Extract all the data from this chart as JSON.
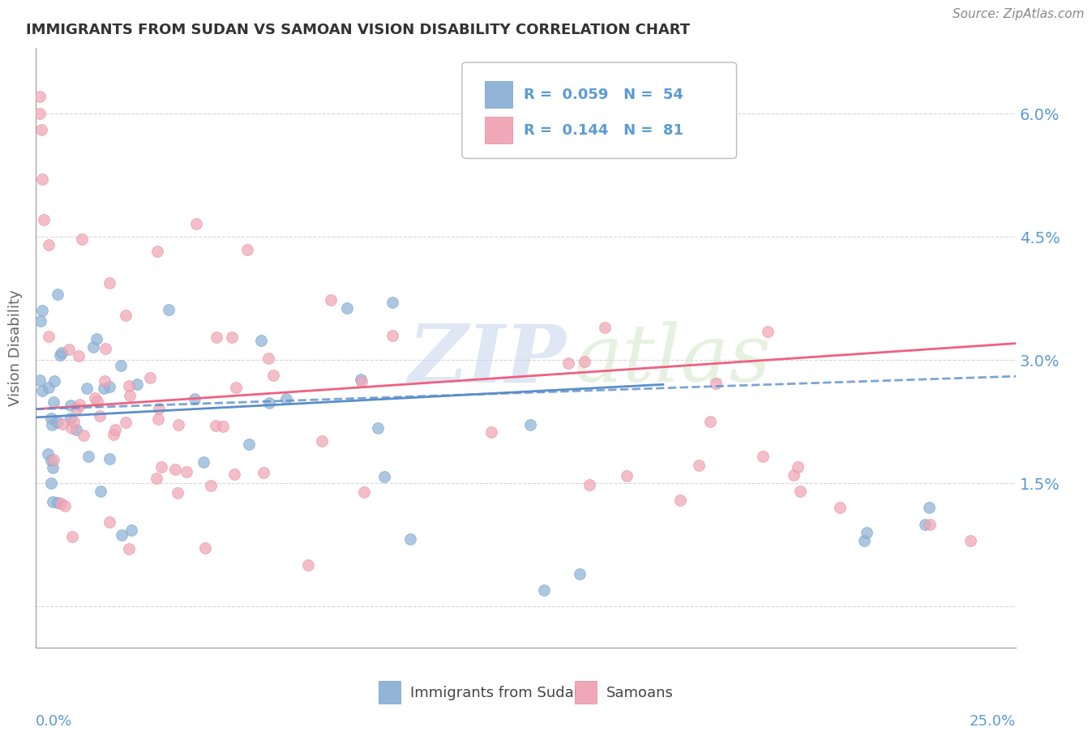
{
  "title": "IMMIGRANTS FROM SUDAN VS SAMOAN VISION DISABILITY CORRELATION CHART",
  "source": "Source: ZipAtlas.com",
  "ylabel": "Vision Disability",
  "yticks": [
    0.0,
    0.015,
    0.03,
    0.045,
    0.06
  ],
  "ytick_labels": [
    "",
    "1.5%",
    "3.0%",
    "4.5%",
    "6.0%"
  ],
  "xlim": [
    0.0,
    0.25
  ],
  "ylim": [
    -0.005,
    0.068
  ],
  "watermark_zip": "ZIP",
  "watermark_atlas": "atlas",
  "legend_text1": "R = 0.059   N = 54",
  "legend_text2": "R = 0.144   N = 81",
  "legend_label1": "Immigrants from Sudan",
  "legend_label2": "Samoans",
  "color_blue": "#92b4d7",
  "color_blue_edge": "#6fa0cc",
  "color_pink": "#f0a8b8",
  "color_pink_edge": "#e8859a",
  "color_blue_line": "#5b8ec9",
  "color_pink_line": "#f06080",
  "color_blue_dashed": "#92b4d7",
  "title_color": "#333333",
  "axis_label_color": "#5b9bd5",
  "legend_text_color": "#5b9bd5",
  "source_color": "#888888",
  "background_color": "#ffffff",
  "grid_color": "#cccccc",
  "watermark_color_zip": "#c8d8ec",
  "watermark_color_atlas": "#d8e8d0",
  "trend_blue_start": 0.023,
  "trend_blue_end": 0.027,
  "trend_pink_start": 0.024,
  "trend_pink_end": 0.032,
  "trend_dashed_start": 0.024,
  "trend_dashed_end": 0.028
}
